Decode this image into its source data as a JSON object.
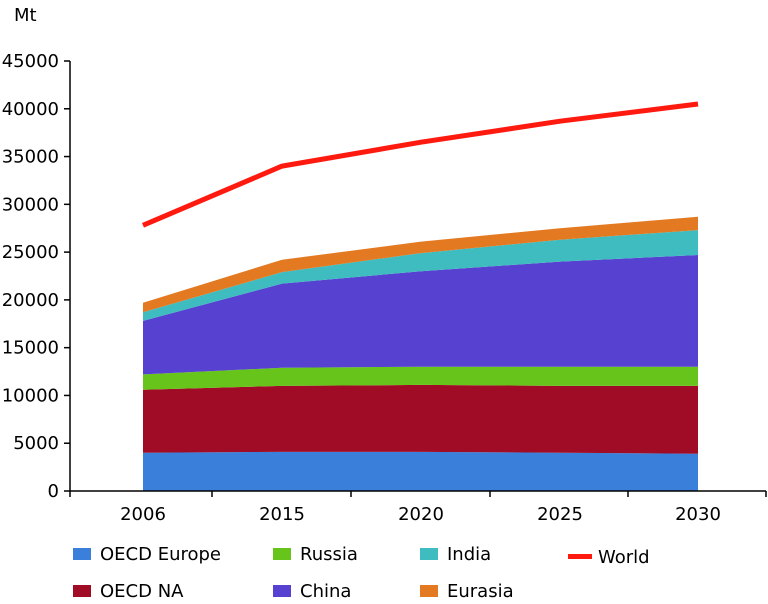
{
  "chart_data": {
    "type": "area",
    "unit_label": "Mt",
    "categories": [
      "2006",
      "2015",
      "2020",
      "2025",
      "2030"
    ],
    "ylim": [
      0,
      45000
    ],
    "yticks": [
      0,
      5000,
      10000,
      15000,
      20000,
      25000,
      30000,
      35000,
      40000,
      45000
    ],
    "series": [
      {
        "name": "OECD Europe",
        "kind": "area",
        "color": "#3a7fd9",
        "values": [
          4000,
          4100,
          4100,
          4000,
          3900
        ]
      },
      {
        "name": "OECD NA",
        "kind": "area",
        "color": "#a00c26",
        "values": [
          6600,
          6900,
          7000,
          7000,
          7100
        ]
      },
      {
        "name": "Russia",
        "kind": "area",
        "color": "#66c41a",
        "values": [
          1600,
          1900,
          1900,
          2000,
          2000
        ]
      },
      {
        "name": "China",
        "kind": "area",
        "color": "#5641d0",
        "values": [
          5600,
          8800,
          10000,
          11000,
          11700
        ]
      },
      {
        "name": "India",
        "kind": "area",
        "color": "#3fbcbf",
        "values": [
          900,
          1200,
          1900,
          2300,
          2600
        ]
      },
      {
        "name": "Eurasia",
        "kind": "area",
        "color": "#e37a22",
        "values": [
          1000,
          1300,
          1200,
          1200,
          1400
        ]
      },
      {
        "name": "World",
        "kind": "line",
        "color": "#ff1a10",
        "values": [
          27800,
          34000,
          36500,
          38700,
          40500
        ]
      }
    ],
    "legend_order": [
      "OECD Europe",
      "Russia",
      "India",
      "World",
      "OECD NA",
      "China",
      "Eurasia"
    ],
    "grid": false
  }
}
